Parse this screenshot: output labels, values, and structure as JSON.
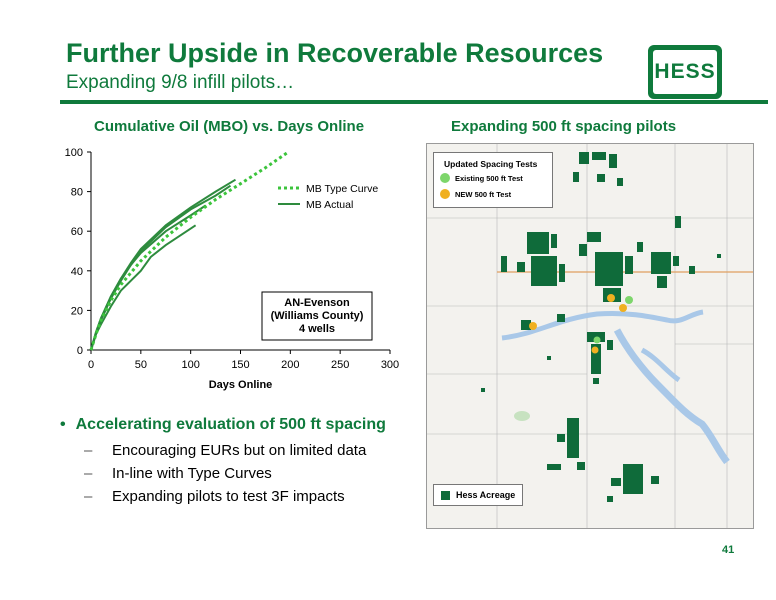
{
  "header": {
    "title": "Further Upside in Recoverable Resources",
    "subtitle": "Expanding 9/8 infill pilots…",
    "logo_text": "HESS",
    "brand_color": "#0f7a3c"
  },
  "chart_title": "Cumulative Oil  (MBO) vs. Days Online",
  "map_title": "Expanding 500 ft spacing pilots",
  "chart_data": {
    "type": "line",
    "title": "Cumulative Oil  (MBO) vs. Days Online",
    "xlabel": "Days Online",
    "ylabel": "",
    "xlim": [
      0,
      300
    ],
    "ylim": [
      0,
      100
    ],
    "xticks": [
      0,
      50,
      100,
      150,
      200,
      250,
      300
    ],
    "yticks": [
      0,
      20,
      40,
      60,
      80,
      100
    ],
    "legend_position": "upper-right",
    "series": [
      {
        "name": "MB Type Curve",
        "style": "dotted",
        "color": "#3cc43c",
        "x": [
          0,
          5,
          10,
          20,
          30,
          50,
          75,
          100,
          125,
          150,
          175,
          198
        ],
        "y": [
          0,
          8,
          15,
          25,
          33,
          45,
          57,
          67,
          76,
          84,
          92,
          100
        ]
      },
      {
        "name": "MB Actual",
        "style": "solid",
        "color": "#2e8b3e",
        "curves": [
          {
            "x": [
              0,
              5,
              10,
              20,
              30,
              40,
              50,
              75,
              100,
              125,
              145
            ],
            "y": [
              0,
              9,
              16,
              27,
              36,
              44,
              51,
              63,
              72,
              80,
              86
            ]
          },
          {
            "x": [
              0,
              5,
              10,
              20,
              30,
              40,
              50,
              75,
              100,
              125,
              140
            ],
            "y": [
              0,
              8,
              15,
              26,
              35,
              43,
              50,
              62,
              71,
              78,
              83
            ]
          },
          {
            "x": [
              0,
              5,
              10,
              20,
              30,
              40,
              50,
              75,
              100,
              115
            ],
            "y": [
              0,
              9,
              16,
              27,
              36,
              43,
              49,
              60,
              68,
              73
            ]
          },
          {
            "x": [
              0,
              5,
              10,
              20,
              30,
              40,
              50,
              60,
              75,
              90,
              105
            ],
            "y": [
              0,
              8,
              13,
              22,
              30,
              35,
              40,
              47,
              53,
              58,
              63
            ]
          }
        ]
      }
    ],
    "annotation": {
      "lines": [
        "AN-Evenson",
        "(Williams County)",
        "4 wells"
      ]
    }
  },
  "bullets": {
    "main": "Accelerating evaluation of 500 ft spacing",
    "items": [
      "Encouraging EURs but on limited data",
      "In-line with Type Curves",
      "Expanding pilots to test 3F impacts"
    ]
  },
  "map": {
    "legend_title": "Updated Spacing Tests",
    "legend_items": [
      {
        "label": "Existing 500 ft Test",
        "color": "#7dd66b"
      },
      {
        "label": "NEW 500 ft Test",
        "color": "#f0b020"
      }
    ],
    "acreage_label": "Hess Acreage",
    "acreage_color": "#0f6b3a"
  },
  "page_number": "41"
}
